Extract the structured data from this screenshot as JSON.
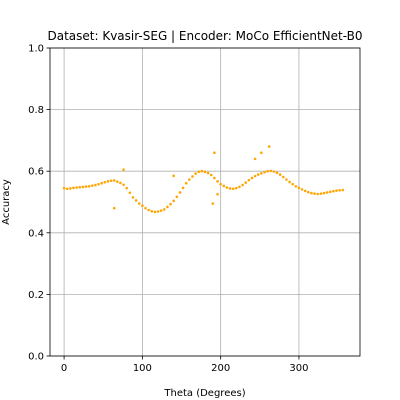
{
  "chart_data": {
    "type": "scatter",
    "title": "Dataset: Kvasir-SEG | Encoder: MoCo EfficientNet-B0",
    "xlabel": "Theta (Degrees)",
    "ylabel": "Accuracy",
    "xlim": [
      -18,
      378
    ],
    "ylim": [
      0.0,
      1.0
    ],
    "xticks": [
      0,
      100,
      200,
      300
    ],
    "yticks": [
      0.0,
      0.2,
      0.4,
      0.6,
      0.8,
      1.0
    ],
    "xtick_labels": [
      "0",
      "100",
      "200",
      "300"
    ],
    "ytick_labels": [
      "0.0",
      "0.2",
      "0.4",
      "0.6",
      "0.8",
      "1.0"
    ],
    "grid": true,
    "marker_color": "#ffa500",
    "series": [
      {
        "x": [
          0,
          4,
          8,
          12,
          16,
          20,
          24,
          28,
          32,
          36,
          40,
          44,
          48,
          52,
          56,
          60,
          64,
          68,
          72,
          76,
          80,
          84,
          88,
          92,
          96,
          100,
          104,
          108,
          112,
          116,
          120,
          124,
          128,
          132,
          136,
          140,
          144,
          148,
          152,
          156,
          160,
          164,
          168,
          172,
          176,
          180,
          184,
          188,
          192,
          196,
          200,
          204,
          208,
          212,
          216,
          220,
          224,
          228,
          232,
          236,
          240,
          244,
          248,
          252,
          256,
          260,
          264,
          268,
          272,
          276,
          280,
          284,
          288,
          292,
          296,
          300,
          304,
          308,
          312,
          316,
          320,
          324,
          328,
          332,
          336,
          340,
          344,
          348,
          352,
          356,
          64,
          76,
          140,
          190,
          192,
          196,
          244,
          252,
          262
        ],
        "y": [
          0.545,
          0.543,
          0.544,
          0.546,
          0.547,
          0.548,
          0.549,
          0.55,
          0.551,
          0.553,
          0.555,
          0.558,
          0.561,
          0.564,
          0.567,
          0.569,
          0.57,
          0.566,
          0.562,
          0.556,
          0.545,
          0.53,
          0.515,
          0.505,
          0.495,
          0.488,
          0.48,
          0.474,
          0.47,
          0.468,
          0.469,
          0.472,
          0.476,
          0.484,
          0.493,
          0.504,
          0.517,
          0.531,
          0.546,
          0.561,
          0.573,
          0.583,
          0.592,
          0.598,
          0.6,
          0.598,
          0.594,
          0.588,
          0.578,
          0.567,
          0.558,
          0.552,
          0.547,
          0.544,
          0.543,
          0.545,
          0.549,
          0.555,
          0.563,
          0.571,
          0.578,
          0.584,
          0.589,
          0.593,
          0.597,
          0.6,
          0.601,
          0.599,
          0.595,
          0.589,
          0.581,
          0.573,
          0.565,
          0.558,
          0.551,
          0.546,
          0.541,
          0.536,
          0.532,
          0.529,
          0.527,
          0.526,
          0.527,
          0.529,
          0.531,
          0.533,
          0.535,
          0.537,
          0.538,
          0.539,
          0.48,
          0.605,
          0.585,
          0.495,
          0.66,
          0.525,
          0.64,
          0.66,
          0.68
        ]
      }
    ]
  }
}
